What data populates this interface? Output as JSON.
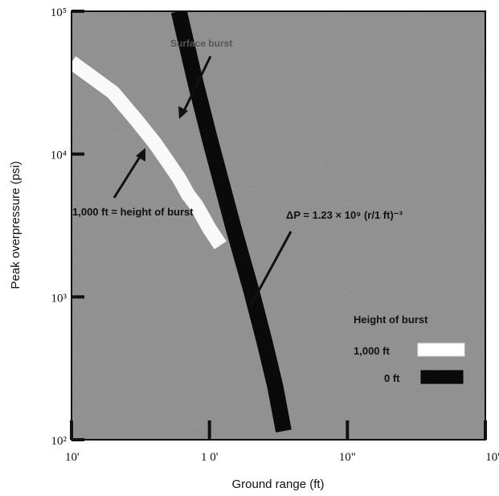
{
  "chart_data": {
    "type": "line",
    "title": "",
    "xlabel": "Ground range (ft)",
    "ylabel": "Peak overpressure (psi)",
    "x_scale": "log",
    "y_scale": "log",
    "xlim": [
      10,
      10000
    ],
    "ylim": [
      100,
      100000
    ],
    "grid": false,
    "x_tick_labels": [
      "10'",
      "1 0'",
      "10\"",
      "10'"
    ],
    "y_tick_labels": [
      "10²",
      "10³",
      "10⁴",
      "10⁵"
    ],
    "legend_title": "Height of burst",
    "series": [
      {
        "name": "Surface burst",
        "color": "#0a0a0a",
        "x": [
          60,
          80,
          100,
          150,
          200,
          250,
          300,
          345
        ],
        "y": [
          100000,
          30500,
          13000,
          3000,
          1130,
          490,
          235,
          115
        ]
      },
      {
        "name": "1,000 ft",
        "color": "#ffffff",
        "x": [
          10,
          20,
          30,
          40,
          50,
          60,
          70,
          80,
          90,
          100,
          120
        ],
        "y": [
          44000,
          27000,
          17000,
          12000,
          8800,
          6800,
          5200,
          4400,
          3600,
          3000,
          2300
        ]
      }
    ],
    "annotations": [
      {
        "text": "Surface burst",
        "points_to": "Surface burst"
      },
      {
        "text": "1,000 ft = height of burst",
        "points_to": "1,000 ft"
      },
      {
        "text": "ΔP = 1.23 × 10⁹ (r/1 ft)⁻³",
        "points_to": "Surface burst"
      }
    ],
    "legend_entries": [
      {
        "label": "1,000 ft",
        "color": "#ffffff"
      },
      {
        "label": "0 ft",
        "color": "#0a0a0a"
      }
    ]
  }
}
